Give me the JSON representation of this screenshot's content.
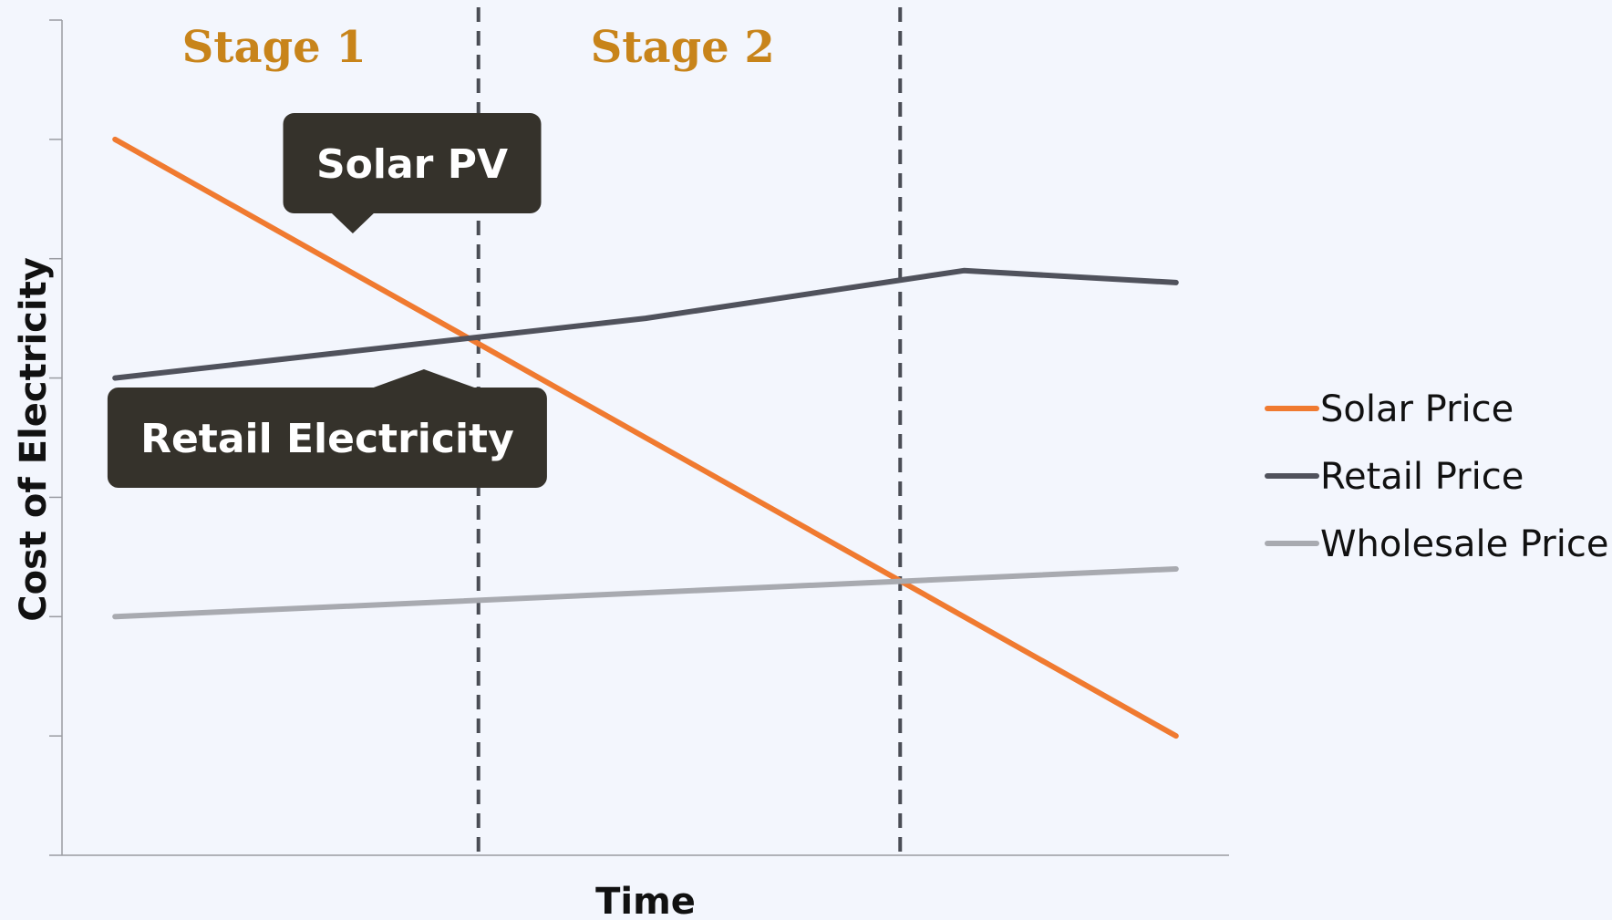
{
  "colors": {
    "solar": "#f07a30",
    "retail": "#50525c",
    "wholesale": "#a8aab0",
    "stage": "#c8841a",
    "callout_bg": "#35322b",
    "divider": "#4a4d55",
    "axis": "#9a9ca2",
    "background": "#f3f6fd"
  },
  "chart_data": {
    "type": "line",
    "title": "",
    "xlabel": "Time",
    "ylabel": "Cost of Electricity",
    "x": [
      0,
      1
    ],
    "xlim": [
      -0.05,
      1.05
    ],
    "ylim": [
      0,
      7
    ],
    "grid": false,
    "legend_position": "right",
    "series": [
      {
        "name": "Solar Price",
        "color_key": "solar",
        "x": [
          0,
          1
        ],
        "values": [
          6.0,
          1.0
        ]
      },
      {
        "name": "Retail Price",
        "color_key": "retail",
        "x": [
          0,
          0.2,
          0.5,
          0.8,
          1
        ],
        "values": [
          4.0,
          4.2,
          4.5,
          4.9,
          4.8
        ]
      },
      {
        "name": "Wholesale Price",
        "color_key": "wholesale",
        "x": [
          0,
          0.5,
          1
        ],
        "values": [
          2.0,
          2.2,
          2.4
        ]
      }
    ],
    "stage_dividers": [
      0.3425,
      0.74
    ],
    "stages": [
      {
        "label": "Stage 1",
        "x": 0.15
      },
      {
        "label": "Stage 2",
        "x": 0.535
      }
    ],
    "annotations": [
      {
        "text": "Solar PV",
        "x": 0.28,
        "y": 5.8,
        "pointer": "down"
      },
      {
        "text": "Retail Electricity",
        "x": 0.2,
        "y": 3.5,
        "pointer": "up"
      }
    ]
  }
}
